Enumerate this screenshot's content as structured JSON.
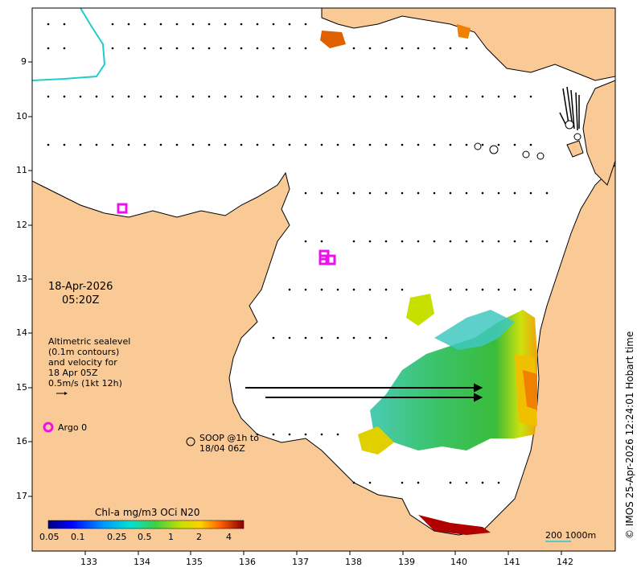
{
  "map": {
    "date_line1": "18-Apr-2026",
    "date_line2": "05:20Z",
    "legend_alt_lines": [
      "Altimetric sealevel",
      "(0.1m contours)",
      "and velocity for",
      "18 Apr 05Z",
      "0.5m/s (1kt 12h)"
    ],
    "argo_label": "Argo 0",
    "soop_line1": "SOOP @1h to",
    "soop_line2": "18/04 06Z",
    "copyright": "© IMOS 25-Apr-2026 12:24:01 Hobart time",
    "scale_label": "200  1000m",
    "colorbar_title": "Chl-a mg/m3 OCi N20",
    "colorbar_ticks": [
      "0.05",
      "0.1",
      "0.25",
      "0.5",
      "1",
      "2",
      "4"
    ],
    "lon_ticks": [
      "133",
      "134",
      "135",
      "136",
      "137",
      "138",
      "139",
      "140",
      "141",
      "142"
    ],
    "lat_ticks": [
      "9",
      "10",
      "11",
      "12",
      "13",
      "14",
      "15",
      "16",
      "17"
    ],
    "colors": {
      "land": "#f9c996",
      "ocean": "#ffffff",
      "argo": "#ee11ee",
      "coast": "#000000",
      "river": "#22cccc"
    }
  }
}
